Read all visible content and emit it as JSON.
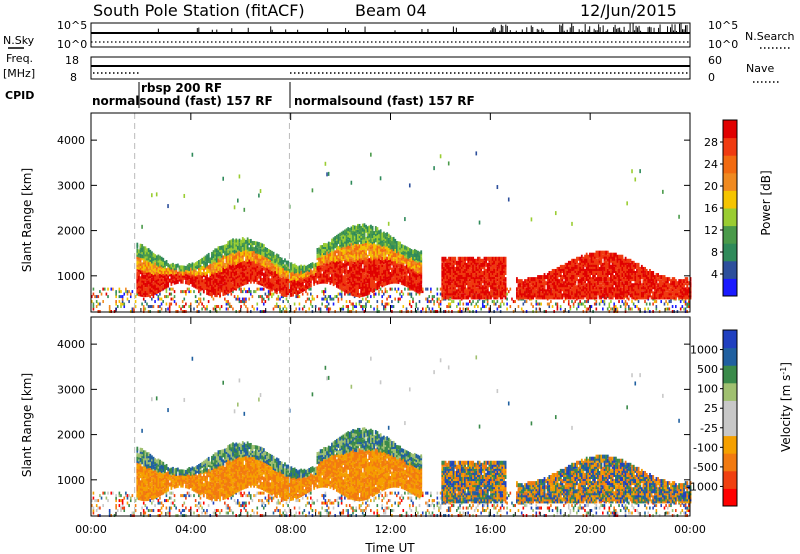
{
  "header": {
    "station": "South Pole Station (fitACF)",
    "beam": "Beam 04",
    "date": "12/Jun/2015"
  },
  "strip_labels": {
    "nsky": "N.Sky",
    "nsky_top": "10^5",
    "nsky_bottom": "10^0",
    "nsearch": "N.Search",
    "nsearch_top": "10^5",
    "nsearch_bottom": "10^0",
    "freq": "Freq.",
    "freq_unit": "[MHz]",
    "freq_top": "18",
    "freq_bottom": "8",
    "nave": "Nave",
    "nave_top": "60",
    "nave_bottom": "0",
    "cpid": "CPID"
  },
  "cpid_segments": [
    {
      "label": "normalsound (fast) 157 RF"
    },
    {
      "label": "rbsp 200 RF"
    },
    {
      "label": "normalsound (fast) 157 RF"
    }
  ],
  "colors": {
    "power_scale": [
      "#1a1aff",
      "#2d4f9c",
      "#2f8a5a",
      "#4a9a4a",
      "#9acd32",
      "#f5c400",
      "#f08a20",
      "#f26a10",
      "#ef3a10",
      "#e00000"
    ],
    "velocity_scale": [
      "#ff0000",
      "#f04010",
      "#f27a10",
      "#f5a000",
      "#c8c8c8",
      "#c8c8c8",
      "#a0c070",
      "#3a8a4a",
      "#2060a0",
      "#2040c0"
    ]
  },
  "chart_data": [
    {
      "type": "heatmap",
      "panel": "power",
      "ylabel": "Slant Range [km]",
      "yticks": [
        "1000",
        "2000",
        "3000",
        "4000"
      ],
      "ylim": [
        200,
        4600
      ],
      "xticks": [
        "00:00",
        "04:00",
        "08:00",
        "12:00",
        "16:00",
        "20:00",
        "00:00"
      ],
      "xlim_hours": [
        0,
        24
      ],
      "colorbar_label": "Power [dB]",
      "colorbar_ticks": [
        "4",
        "8",
        "12",
        "16",
        "20",
        "24",
        "28"
      ],
      "colorbar_range": [
        0,
        32
      ]
    },
    {
      "type": "heatmap",
      "panel": "velocity",
      "ylabel": "Slant Range [km]",
      "yticks": [
        "1000",
        "2000",
        "3000",
        "4000"
      ],
      "ylim": [
        200,
        4600
      ],
      "xticks": [
        "00:00",
        "04:00",
        "08:00",
        "12:00",
        "16:00",
        "20:00",
        "00:00"
      ],
      "xlim_hours": [
        0,
        24
      ],
      "xlabel": "Time UT",
      "colorbar_label": "Velocity [m s",
      "colorbar_label_sup": "-1",
      "colorbar_label_end": "]",
      "colorbar_ticks": [
        "-1000",
        "-500",
        "-100",
        "-25",
        "25",
        "100",
        "500",
        "1000"
      ]
    }
  ],
  "cpid_changes_hours": [
    1.75,
    7.95
  ]
}
